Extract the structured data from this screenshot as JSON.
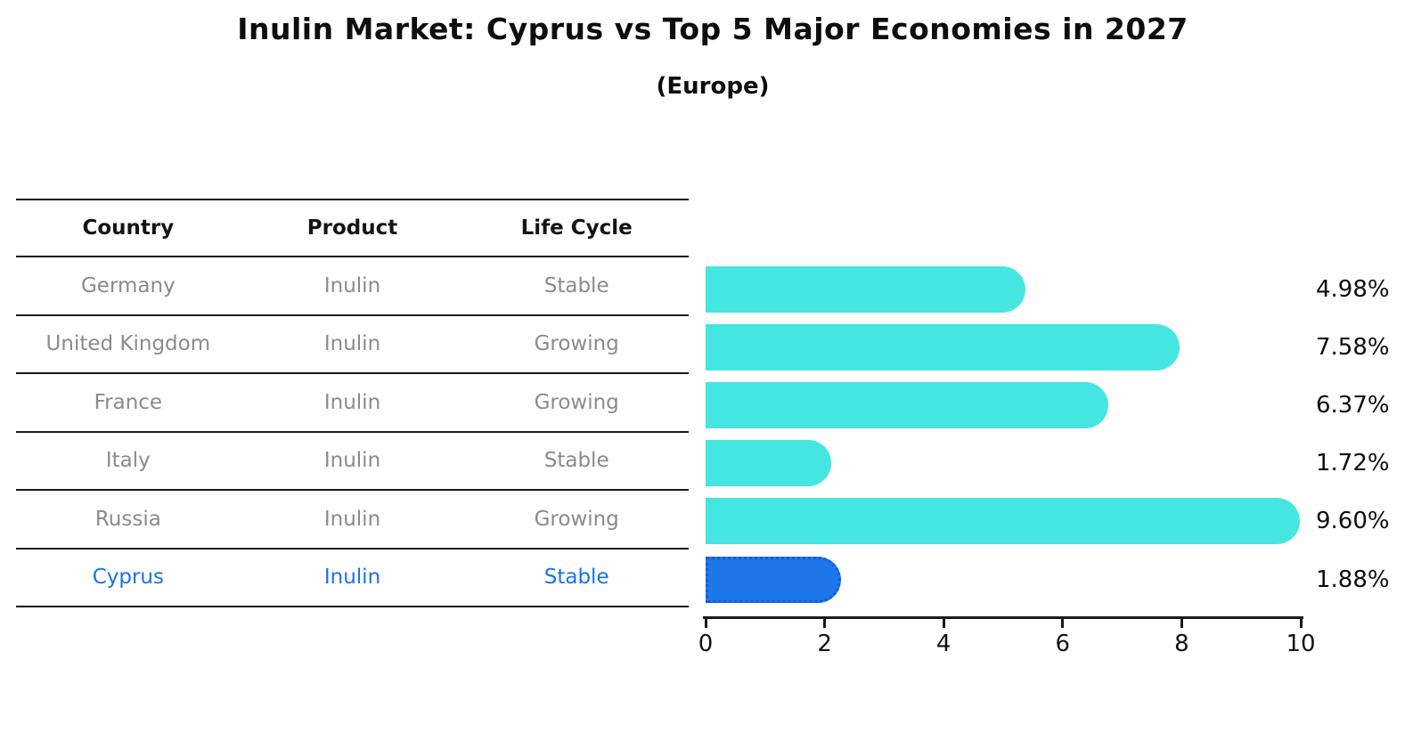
{
  "title": "Inulin Market: Cyprus vs Top 5 Major Economies in 2027",
  "subtitle": "(Europe)",
  "colors": {
    "bar": "#45E6E1",
    "highlight_bar": "#1E76E8",
    "highlight_border": "#0E5FD8",
    "highlight_text": "#1A73E8",
    "table_text": "#8B8B8B",
    "header_text": "#141414",
    "axis": "#1A1A1A"
  },
  "table": {
    "columns": [
      "Country",
      "Product",
      "Life Cycle"
    ],
    "rows": [
      [
        "Germany",
        "Inulin",
        "Stable"
      ],
      [
        "United Kingdom",
        "Inulin",
        "Growing"
      ],
      [
        "France",
        "Inulin",
        "Growing"
      ],
      [
        "Italy",
        "Inulin",
        "Stable"
      ],
      [
        "Russia",
        "Inulin",
        "Growing"
      ],
      [
        "Cyprus",
        "Inulin",
        "Stable"
      ]
    ],
    "highlight_row_index": 5
  },
  "chart_data": {
    "type": "bar",
    "orientation": "horizontal",
    "title": "Inulin Market: Cyprus vs Top 5 Major Economies in 2027",
    "subtitle": "(Europe)",
    "categories": [
      "Germany",
      "United Kingdom",
      "France",
      "Italy",
      "Russia",
      "Cyprus"
    ],
    "values": [
      4.98,
      7.58,
      6.37,
      1.72,
      9.6,
      1.88
    ],
    "value_labels": [
      "4.98%",
      "7.58%",
      "6.37%",
      "1.72%",
      "9.60%",
      "1.88%"
    ],
    "highlight_index": 5,
    "highlight_category": "Cyprus",
    "xlim": [
      0,
      10
    ],
    "xticks": [
      0,
      2,
      4,
      6,
      8,
      10
    ],
    "xtick_labels": [
      "0",
      "2",
      "4",
      "6",
      "8",
      "10"
    ],
    "unit": "%",
    "grid": false,
    "legend": false
  }
}
